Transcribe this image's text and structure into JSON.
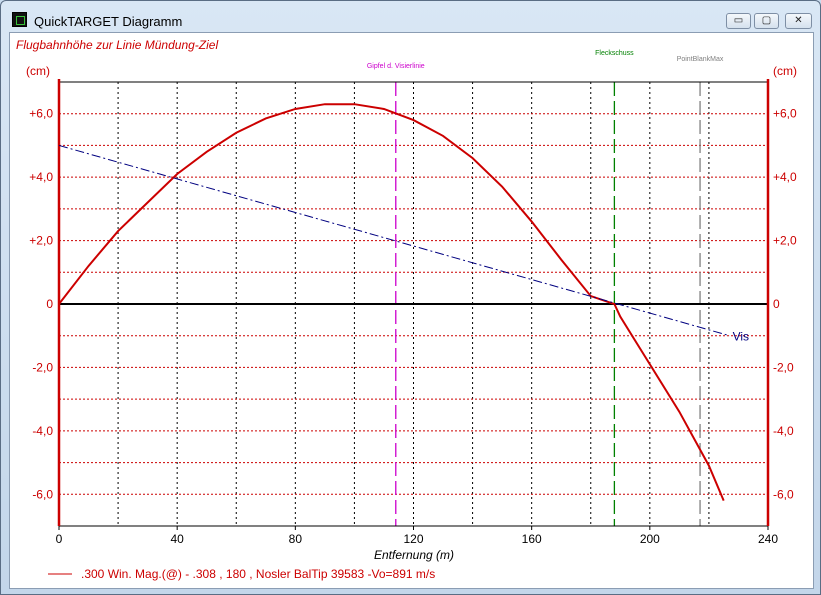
{
  "window": {
    "title": "QuickTARGET Diagramm",
    "icon": "grid-app-icon",
    "controls": {
      "minimize": "▭",
      "maximize": "▢",
      "close": "✕"
    }
  },
  "colors": {
    "trajectory": "#cc0000",
    "sightline": "#000080",
    "grid": "#cc0000",
    "peak_line": "#cc00cc",
    "zero_line": "#008000",
    "pbr_line": "#808080"
  },
  "chart_data": {
    "type": "line",
    "title": "Flugbahnhöhe zur Linie Mündung-Ziel",
    "xlabel": "Entfernung (m)",
    "ylabel_left": "(cm)",
    "ylabel_right": "(cm)",
    "xlim": [
      0,
      240
    ],
    "ylim": [
      -7,
      7
    ],
    "x_ticks": [
      0,
      40,
      80,
      120,
      160,
      200,
      240
    ],
    "x_tick_labels": [
      "0",
      "40",
      "80",
      "120",
      "160",
      "200",
      "240"
    ],
    "y_ticks": [
      6,
      4,
      2,
      0,
      -2,
      -4,
      -6
    ],
    "y_tick_labels": [
      "+6,0",
      "+4,0",
      "+2,0",
      "0",
      "-2,0",
      "-4,0",
      "-6,0"
    ],
    "grid": true,
    "series": [
      {
        "name": ".300 Win. Mag.(@) - .308 , 180 , Nosler BalTip 39583 -Vo=891 m/s",
        "x": [
          0,
          10,
          20,
          30,
          40,
          50,
          60,
          70,
          80,
          90,
          100,
          110,
          120,
          130,
          140,
          150,
          160,
          170,
          180,
          188,
          190,
          200,
          210,
          220,
          225
        ],
        "y": [
          0,
          1.2,
          2.3,
          3.2,
          4.1,
          4.8,
          5.4,
          5.85,
          6.15,
          6.3,
          6.3,
          6.15,
          5.8,
          5.3,
          4.6,
          3.7,
          2.6,
          1.4,
          0.25,
          0,
          -0.4,
          -1.9,
          -3.4,
          -5.1,
          -6.2
        ]
      },
      {
        "name": "Vis",
        "x": [
          0,
          227
        ],
        "y": [
          5.0,
          -1.0
        ]
      }
    ],
    "vlines": [
      {
        "label": "Gipfel d. Visierlinie",
        "x": 114
      },
      {
        "label": "Fleckschuss",
        "x": 188
      },
      {
        "label": "PointBlankMax",
        "x": 217
      }
    ]
  }
}
